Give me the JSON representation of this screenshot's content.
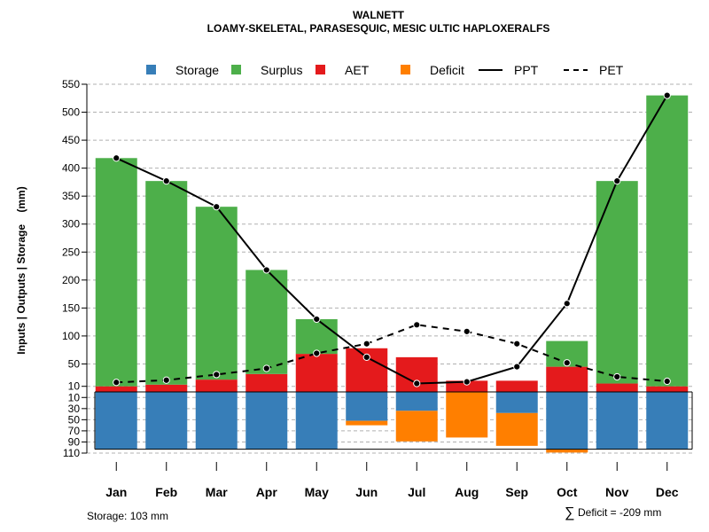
{
  "chart_data": {
    "type": "bar",
    "title": "WALNETT",
    "subtitle": "LOAMY-SKELETAL, PARASESQUIC, MESIC ULTIC HAPLOXERALFS",
    "ylabel": "Inputs | Outputs | Storage    (mm)",
    "ylim_upper": [
      0,
      550
    ],
    "ylim_lower": [
      0,
      110
    ],
    "upper_ticks": [
      "550",
      "500",
      "450",
      "400",
      "350",
      "300",
      "250",
      "200",
      "150",
      "100",
      "50",
      "10"
    ],
    "lower_ticks": [
      "10",
      "30",
      "50",
      "70",
      "90",
      "110"
    ],
    "categories": [
      "Jan",
      "Feb",
      "Mar",
      "Apr",
      "May",
      "Jun",
      "Jul",
      "Aug",
      "Sep",
      "Oct",
      "Nov",
      "Dec"
    ],
    "legend": [
      "Storage",
      "Surplus",
      "AET",
      "Deficit",
      "PPT",
      "PET"
    ],
    "colors": {
      "storage": "#377EB8",
      "surplus": "#4DAF4A",
      "aet": "#E41A1C",
      "deficit": "#FF7F00",
      "line": "#000000",
      "grid": "#b0b0b0"
    },
    "series": {
      "aet": [
        10,
        13,
        22,
        32,
        68,
        78,
        62,
        20,
        20,
        45,
        15,
        10
      ],
      "surplus": [
        408,
        364,
        309,
        186,
        62,
        0,
        0,
        0,
        0,
        46,
        362,
        520
      ],
      "storage": [
        103,
        103,
        103,
        103,
        103,
        52,
        34,
        0,
        38,
        103,
        103,
        103
      ],
      "deficit": [
        0,
        0,
        0,
        0,
        0,
        8,
        55,
        82,
        59,
        6,
        0,
        0
      ],
      "ppt": [
        418,
        377,
        331,
        218,
        130,
        62,
        15,
        18,
        45,
        158,
        377,
        530
      ],
      "pet": [
        17,
        21,
        31,
        42,
        69,
        86,
        120,
        108,
        86,
        52,
        27,
        19
      ]
    },
    "footer": {
      "storage_text": "Storage: 103 mm",
      "deficit_symbol": "∑",
      "deficit_text": "Deficit = -209 mm"
    }
  }
}
